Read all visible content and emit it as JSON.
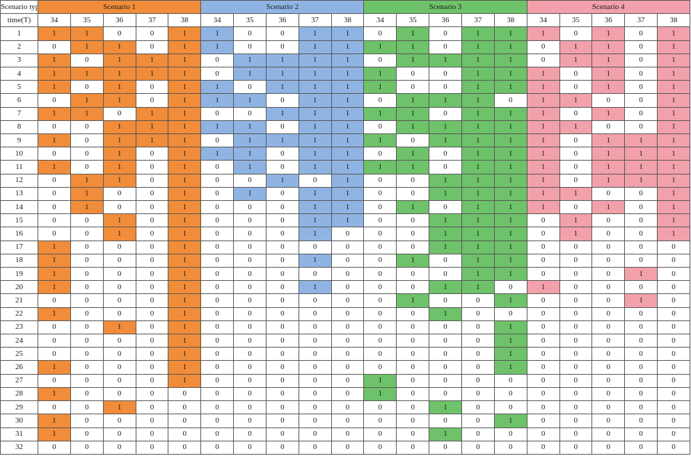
{
  "header": {
    "type_label": "Scenario type",
    "time_label": "time(T)",
    "scenarios": [
      {
        "label": "Scenario 1",
        "color": "#f08c3a"
      },
      {
        "label": "Scenario 2",
        "color": "#8fb4e3"
      },
      {
        "label": "Scenario 3",
        "color": "#6ec26a"
      },
      {
        "label": "Scenario 4",
        "color": "#f2a0aa"
      }
    ],
    "columns": [
      "34",
      "35",
      "36",
      "37",
      "38"
    ]
  },
  "rows": [
    {
      "t": "1",
      "s": [
        [
          1,
          1,
          0,
          0,
          1
        ],
        [
          1,
          0,
          0,
          1,
          1
        ],
        [
          0,
          1,
          0,
          1,
          1
        ],
        [
          1,
          0,
          1,
          0,
          1
        ]
      ]
    },
    {
      "t": "2",
      "s": [
        [
          0,
          1,
          1,
          0,
          1
        ],
        [
          1,
          0,
          0,
          1,
          1
        ],
        [
          1,
          1,
          0,
          1,
          1
        ],
        [
          0,
          1,
          1,
          0,
          1
        ]
      ]
    },
    {
      "t": "3",
      "s": [
        [
          1,
          0,
          1,
          1,
          1
        ],
        [
          0,
          1,
          1,
          1,
          1
        ],
        [
          0,
          1,
          1,
          1,
          1
        ],
        [
          0,
          1,
          1,
          0,
          1
        ]
      ]
    },
    {
      "t": "4",
      "s": [
        [
          1,
          1,
          1,
          1,
          1
        ],
        [
          0,
          1,
          1,
          1,
          1
        ],
        [
          1,
          0,
          0,
          1,
          1
        ],
        [
          1,
          0,
          1,
          0,
          1
        ]
      ]
    },
    {
      "t": "5",
      "s": [
        [
          1,
          0,
          1,
          0,
          1
        ],
        [
          1,
          0,
          1,
          1,
          1
        ],
        [
          1,
          0,
          0,
          1,
          1
        ],
        [
          1,
          0,
          1,
          0,
          1
        ]
      ]
    },
    {
      "t": "6",
      "s": [
        [
          0,
          1,
          1,
          0,
          1
        ],
        [
          1,
          1,
          0,
          1,
          1
        ],
        [
          0,
          1,
          1,
          1,
          0
        ],
        [
          1,
          1,
          0,
          0,
          1
        ]
      ]
    },
    {
      "t": "7",
      "s": [
        [
          1,
          1,
          0,
          1,
          1
        ],
        [
          0,
          0,
          1,
          1,
          1
        ],
        [
          1,
          1,
          0,
          1,
          1
        ],
        [
          1,
          0,
          1,
          0,
          1
        ]
      ]
    },
    {
      "t": "8",
      "s": [
        [
          0,
          0,
          1,
          1,
          1
        ],
        [
          1,
          1,
          0,
          1,
          1
        ],
        [
          0,
          1,
          1,
          1,
          1
        ],
        [
          1,
          1,
          0,
          0,
          1
        ]
      ]
    },
    {
      "t": "9",
      "s": [
        [
          1,
          0,
          1,
          1,
          1
        ],
        [
          0,
          1,
          1,
          1,
          1
        ],
        [
          1,
          0,
          1,
          1,
          1
        ],
        [
          1,
          0,
          1,
          1,
          1
        ]
      ]
    },
    {
      "t": "10",
      "s": [
        [
          0,
          0,
          1,
          0,
          1
        ],
        [
          1,
          1,
          0,
          1,
          1
        ],
        [
          0,
          1,
          0,
          1,
          1
        ],
        [
          1,
          0,
          1,
          1,
          1
        ]
      ]
    },
    {
      "t": "11",
      "s": [
        [
          1,
          0,
          1,
          0,
          1
        ],
        [
          0,
          1,
          0,
          1,
          1
        ],
        [
          1,
          1,
          0,
          1,
          1
        ],
        [
          1,
          0,
          1,
          1,
          1
        ]
      ]
    },
    {
      "t": "12",
      "s": [
        [
          0,
          1,
          1,
          0,
          1
        ],
        [
          0,
          0,
          1,
          0,
          1
        ],
        [
          0,
          0,
          1,
          1,
          1
        ],
        [
          1,
          0,
          1,
          1,
          1
        ]
      ]
    },
    {
      "t": "13",
      "s": [
        [
          0,
          1,
          0,
          0,
          1
        ],
        [
          0,
          1,
          0,
          1,
          1
        ],
        [
          0,
          0,
          1,
          1,
          1
        ],
        [
          1,
          1,
          0,
          0,
          1
        ]
      ]
    },
    {
      "t": "14",
      "s": [
        [
          0,
          1,
          0,
          0,
          1
        ],
        [
          0,
          0,
          0,
          1,
          1
        ],
        [
          0,
          1,
          0,
          1,
          1
        ],
        [
          1,
          0,
          1,
          0,
          1
        ]
      ]
    },
    {
      "t": "15",
      "s": [
        [
          0,
          0,
          1,
          0,
          1
        ],
        [
          0,
          0,
          0,
          1,
          1
        ],
        [
          0,
          0,
          1,
          1,
          1
        ],
        [
          0,
          1,
          0,
          0,
          1
        ]
      ]
    },
    {
      "t": "16",
      "s": [
        [
          0,
          0,
          1,
          0,
          1
        ],
        [
          0,
          0,
          0,
          1,
          0
        ],
        [
          0,
          0,
          1,
          1,
          1
        ],
        [
          0,
          1,
          0,
          0,
          1
        ]
      ]
    },
    {
      "t": "17",
      "s": [
        [
          1,
          0,
          0,
          0,
          1
        ],
        [
          0,
          0,
          0,
          0,
          0
        ],
        [
          0,
          0,
          1,
          1,
          1
        ],
        [
          0,
          0,
          0,
          0,
          0
        ]
      ]
    },
    {
      "t": "18",
      "s": [
        [
          1,
          0,
          0,
          0,
          1
        ],
        [
          0,
          0,
          0,
          1,
          0
        ],
        [
          0,
          1,
          0,
          1,
          1
        ],
        [
          0,
          0,
          0,
          0,
          0
        ]
      ]
    },
    {
      "t": "19",
      "s": [
        [
          1,
          0,
          0,
          0,
          1
        ],
        [
          0,
          0,
          0,
          0,
          0
        ],
        [
          0,
          0,
          0,
          1,
          1
        ],
        [
          0,
          0,
          0,
          1,
          0
        ]
      ]
    },
    {
      "t": "20",
      "s": [
        [
          1,
          0,
          0,
          0,
          1
        ],
        [
          0,
          0,
          0,
          1,
          0
        ],
        [
          0,
          0,
          1,
          1,
          0
        ],
        [
          1,
          0,
          0,
          0,
          0
        ]
      ]
    },
    {
      "t": "21",
      "s": [
        [
          0,
          0,
          0,
          0,
          1
        ],
        [
          0,
          0,
          0,
          0,
          0
        ],
        [
          0,
          1,
          0,
          0,
          1
        ],
        [
          0,
          0,
          0,
          1,
          0
        ]
      ]
    },
    {
      "t": "22",
      "s": [
        [
          1,
          0,
          0,
          0,
          1
        ],
        [
          0,
          0,
          0,
          0,
          0
        ],
        [
          0,
          0,
          1,
          0,
          0
        ],
        [
          0,
          0,
          0,
          0,
          0
        ]
      ]
    },
    {
      "t": "23",
      "s": [
        [
          0,
          0,
          1,
          0,
          1
        ],
        [
          0,
          0,
          0,
          0,
          0
        ],
        [
          0,
          0,
          0,
          0,
          1
        ],
        [
          0,
          0,
          0,
          0,
          0
        ]
      ]
    },
    {
      "t": "24",
      "s": [
        [
          0,
          0,
          0,
          0,
          1
        ],
        [
          0,
          0,
          0,
          0,
          0
        ],
        [
          0,
          0,
          0,
          0,
          1
        ],
        [
          0,
          0,
          0,
          0,
          0
        ]
      ]
    },
    {
      "t": "25",
      "s": [
        [
          0,
          0,
          0,
          0,
          1
        ],
        [
          0,
          0,
          0,
          0,
          0
        ],
        [
          0,
          0,
          0,
          0,
          1
        ],
        [
          0,
          0,
          0,
          0,
          0
        ]
      ]
    },
    {
      "t": "26",
      "s": [
        [
          1,
          0,
          0,
          0,
          1
        ],
        [
          0,
          0,
          0,
          0,
          0
        ],
        [
          0,
          0,
          0,
          0,
          1
        ],
        [
          0,
          0,
          0,
          0,
          0
        ]
      ]
    },
    {
      "t": "27",
      "s": [
        [
          0,
          0,
          0,
          0,
          1
        ],
        [
          0,
          0,
          0,
          0,
          0
        ],
        [
          1,
          0,
          0,
          0,
          0
        ],
        [
          0,
          0,
          0,
          0,
          0
        ]
      ]
    },
    {
      "t": "28",
      "s": [
        [
          1,
          0,
          0,
          0,
          0
        ],
        [
          0,
          0,
          0,
          0,
          0
        ],
        [
          1,
          0,
          0,
          0,
          0
        ],
        [
          0,
          0,
          0,
          0,
          0
        ]
      ]
    },
    {
      "t": "29",
      "s": [
        [
          0,
          0,
          1,
          0,
          0
        ],
        [
          0,
          0,
          0,
          0,
          0
        ],
        [
          0,
          0,
          1,
          0,
          0
        ],
        [
          0,
          0,
          0,
          0,
          0
        ]
      ]
    },
    {
      "t": "30",
      "s": [
        [
          1,
          0,
          0,
          0,
          0
        ],
        [
          0,
          0,
          0,
          0,
          0
        ],
        [
          0,
          0,
          0,
          0,
          1
        ],
        [
          0,
          0,
          0,
          0,
          0
        ]
      ]
    },
    {
      "t": "31",
      "s": [
        [
          1,
          0,
          0,
          0,
          0
        ],
        [
          0,
          0,
          0,
          0,
          0
        ],
        [
          0,
          0,
          1,
          0,
          0
        ],
        [
          0,
          0,
          0,
          0,
          0
        ]
      ]
    },
    {
      "t": "32",
      "s": [
        [
          0,
          0,
          0,
          0,
          0
        ],
        [
          0,
          0,
          0,
          0,
          0
        ],
        [
          0,
          0,
          0,
          0,
          0
        ],
        [
          0,
          0,
          0,
          0,
          0
        ]
      ]
    }
  ]
}
